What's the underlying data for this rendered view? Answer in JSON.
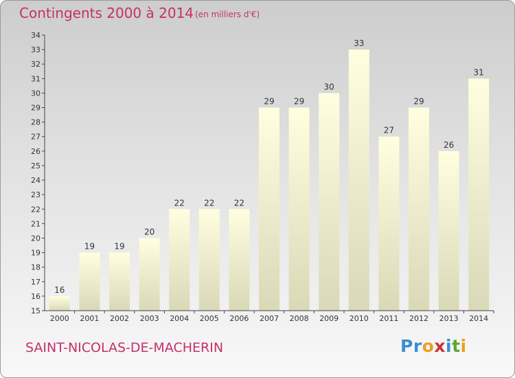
{
  "title": "Contingents 2000 à 2014",
  "subtitle": "(en milliers d'€)",
  "commune": "SAINT-NICOLAS-DE-MACHERIN",
  "logo": {
    "letters": [
      {
        "char": "P",
        "color": "#3a8fd1"
      },
      {
        "char": "r",
        "color": "#3a8fd1"
      },
      {
        "char": "o",
        "color": "#e8a020"
      },
      {
        "char": "x",
        "color": "#d03030"
      },
      {
        "char": "i",
        "color": "#3a8fd1"
      },
      {
        "char": "t",
        "color": "#5aa830"
      },
      {
        "char": "i",
        "color": "#e8a020"
      }
    ]
  },
  "colors": {
    "accent": "#c4306a",
    "bar_top": "#ffffe0",
    "bar_bottom": "#d9d9b8",
    "axis": "#444444"
  },
  "chart_data": {
    "type": "bar",
    "categories": [
      "2000",
      "2001",
      "2002",
      "2003",
      "2004",
      "2005",
      "2006",
      "2007",
      "2008",
      "2009",
      "2010",
      "2011",
      "2012",
      "2013",
      "2014"
    ],
    "values": [
      16,
      19,
      19,
      20,
      22,
      22,
      22,
      29,
      29,
      30,
      33,
      27,
      29,
      26,
      31
    ],
    "yticks": [
      15,
      16,
      17,
      18,
      19,
      20,
      21,
      22,
      23,
      24,
      25,
      26,
      27,
      28,
      29,
      30,
      31,
      32,
      33,
      34
    ],
    "ylim": [
      15,
      34
    ],
    "grid": false
  }
}
